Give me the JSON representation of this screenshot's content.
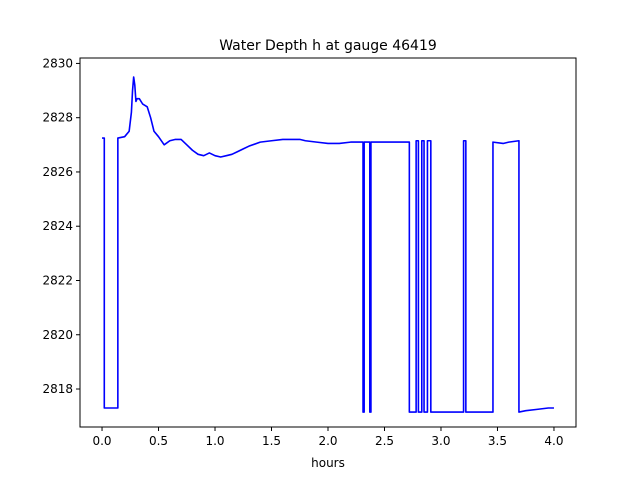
{
  "chart_data": {
    "type": "line",
    "title": "Water Depth h at gauge 46419",
    "xlabel": "hours",
    "ylabel": "",
    "xlim": [
      -0.195,
      4.195
    ],
    "ylim": [
      2816.6,
      2830.2
    ],
    "xticks": [
      0.0,
      0.5,
      1.0,
      1.5,
      2.0,
      2.5,
      3.0,
      3.5,
      4.0
    ],
    "xtick_labels": [
      "0.0",
      "0.5",
      "1.0",
      "1.5",
      "2.0",
      "2.5",
      "3.0",
      "3.5",
      "4.0"
    ],
    "yticks": [
      2818,
      2820,
      2822,
      2824,
      2826,
      2828,
      2830
    ],
    "ytick_labels": [
      "2818",
      "2820",
      "2822",
      "2824",
      "2826",
      "2828",
      "2830"
    ],
    "grid": false,
    "series": [
      {
        "name": "",
        "color": "#0000ff",
        "x": [
          0.0,
          0.02,
          0.02,
          0.14,
          0.14,
          0.2,
          0.24,
          0.26,
          0.27,
          0.28,
          0.29,
          0.3,
          0.31,
          0.33,
          0.36,
          0.4,
          0.43,
          0.46,
          0.5,
          0.55,
          0.6,
          0.65,
          0.7,
          0.75,
          0.8,
          0.85,
          0.9,
          0.95,
          1.0,
          1.05,
          1.1,
          1.15,
          1.2,
          1.25,
          1.3,
          1.4,
          1.5,
          1.6,
          1.7,
          1.75,
          1.8,
          1.9,
          2.0,
          2.1,
          2.2,
          2.31,
          2.31,
          2.32,
          2.32,
          2.37,
          2.37,
          2.38,
          2.38,
          2.5,
          2.6,
          2.72,
          2.72,
          2.78,
          2.78,
          2.8,
          2.8,
          2.83,
          2.83,
          2.85,
          2.85,
          2.88,
          2.88,
          2.91,
          2.91,
          3.0,
          3.1,
          3.2,
          3.2,
          3.22,
          3.22,
          3.23,
          3.23,
          3.3,
          3.4,
          3.46,
          3.46,
          3.55,
          3.6,
          3.69,
          3.69,
          3.75,
          3.85,
          3.95,
          4.0
        ],
        "y": [
          2827.25,
          2827.25,
          2817.3,
          2817.3,
          2827.25,
          2827.3,
          2827.5,
          2828.2,
          2829.0,
          2829.5,
          2829.2,
          2828.6,
          2828.7,
          2828.7,
          2828.5,
          2828.4,
          2828.0,
          2827.5,
          2827.3,
          2827.0,
          2827.15,
          2827.2,
          2827.2,
          2827.0,
          2826.8,
          2826.65,
          2826.6,
          2826.7,
          2826.6,
          2826.55,
          2826.6,
          2826.65,
          2826.75,
          2826.85,
          2826.95,
          2827.1,
          2827.15,
          2827.2,
          2827.2,
          2827.2,
          2827.15,
          2827.1,
          2827.05,
          2827.05,
          2827.1,
          2827.1,
          2817.15,
          2817.15,
          2827.1,
          2827.1,
          2817.15,
          2817.15,
          2827.1,
          2827.1,
          2827.1,
          2827.1,
          2817.15,
          2817.15,
          2827.15,
          2827.15,
          2817.15,
          2817.15,
          2827.15,
          2827.15,
          2817.15,
          2817.15,
          2827.15,
          2827.15,
          2817.15,
          2817.15,
          2817.15,
          2817.15,
          2827.15,
          2827.15,
          2817.15,
          2817.15,
          2817.15,
          2817.15,
          2817.15,
          2817.15,
          2827.1,
          2827.05,
          2827.1,
          2827.15,
          2817.15,
          2817.2,
          2817.25,
          2817.3,
          2817.3
        ]
      }
    ]
  }
}
